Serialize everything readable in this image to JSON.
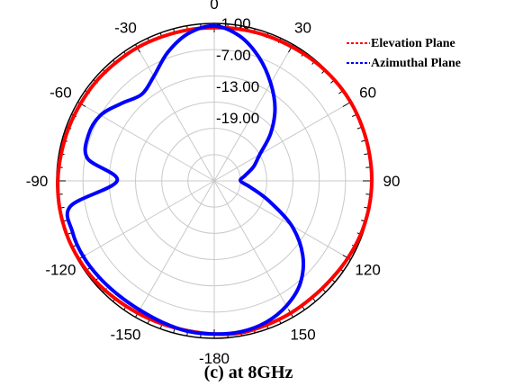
{
  "chart_data": {
    "type": "polar",
    "angle_unit": "deg",
    "angle_zero": "top",
    "angle_direction": "clockwise",
    "angle_tick_labels": [
      "0",
      "30",
      "60",
      "90",
      "120",
      "150",
      "-180",
      "-150",
      "-120",
      "-90",
      "-60",
      "-30"
    ],
    "angle_tick_values": [
      0,
      30,
      60,
      90,
      120,
      150,
      180,
      210,
      240,
      270,
      300,
      330
    ],
    "radial_range": [
      -31,
      -1
    ],
    "radial_ticks": [
      -1,
      -7,
      -13,
      -19
    ],
    "radial_tick_labels": [
      "-1.00",
      "-7.00",
      "-13.00",
      "-19.00"
    ],
    "grid": true,
    "legend_position": "top-right",
    "series": [
      {
        "name": "Elevation Plane",
        "color": "#ff0000",
        "line_style": "dashed in legend",
        "theta": [
          0,
          10,
          20,
          30,
          40,
          50,
          60,
          70,
          80,
          90,
          100,
          110,
          120,
          130,
          140,
          150,
          160,
          170,
          180,
          190,
          200,
          210,
          220,
          230,
          240,
          250,
          260,
          270,
          280,
          290,
          300,
          310,
          320,
          330,
          340,
          350
        ],
        "r": [
          -1.8,
          -1.7,
          -1.6,
          -1.5,
          -1.3,
          -1.1,
          -0.9,
          -0.8,
          -0.8,
          -0.9,
          -1.1,
          -1.3,
          -1.6,
          -1.9,
          -2.0,
          -1.9,
          -1.8,
          -1.6,
          -1.8,
          -2.0,
          -2.0,
          -1.9,
          -1.7,
          -1.4,
          -1.2,
          -1.1,
          -1.1,
          -1.2,
          -1.4,
          -1.5,
          -1.6,
          -1.6,
          -1.7,
          -1.7,
          -1.8,
          -1.8
        ]
      },
      {
        "name": "Azimuthal Plane",
        "color": "#0000ff",
        "line_style": "dashed in legend",
        "theta": [
          0,
          10,
          20,
          30,
          40,
          50,
          60,
          70,
          80,
          90,
          100,
          110,
          120,
          130,
          140,
          150,
          160,
          170,
          180,
          190,
          200,
          210,
          220,
          230,
          240,
          250,
          260,
          270,
          280,
          290,
          300,
          310,
          320,
          330,
          340,
          350
        ],
        "r": [
          -1.5,
          -3.0,
          -6.0,
          -9.5,
          -13.0,
          -17.0,
          -21.0,
          -23.0,
          -25.0,
          -26.0,
          -24.0,
          -20.0,
          -14.0,
          -9.0,
          -5.5,
          -3.5,
          -2.3,
          -1.8,
          -1.8,
          -1.9,
          -2.3,
          -2.6,
          -2.6,
          -2.4,
          -2.2,
          -2.3,
          -3.2,
          -12.5,
          -6.5,
          -5.5,
          -6.0,
          -8.0,
          -9.5,
          -8.0,
          -5.0,
          -2.5
        ]
      }
    ]
  },
  "legend": [
    {
      "label": "Elevation Plane",
      "color": "#ff0000"
    },
    {
      "label": "Azimuthal Plane",
      "color": "#0000ff"
    }
  ],
  "caption": "(c) at 8GHz"
}
